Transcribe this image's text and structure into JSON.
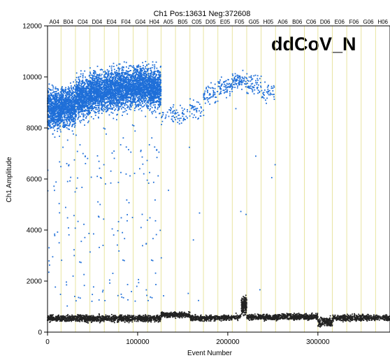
{
  "chart_data": {
    "type": "scatter",
    "title": "Ch1 Pos:13631 Neg:372608",
    "overlay_label": "ddCoV_N",
    "xlabel": "Event Number",
    "ylabel": "Ch1 Amplitude",
    "xlim": [
      0,
      380000
    ],
    "ylim": [
      0,
      12000
    ],
    "x_ticks": [
      0,
      100000,
      200000,
      300000
    ],
    "x_tick_labels": [
      "0",
      "100000",
      "200000",
      "300000"
    ],
    "y_ticks": [
      0,
      2000,
      4000,
      6000,
      8000,
      10000,
      12000
    ],
    "y_tick_labels": [
      "0",
      "2000",
      "4000",
      "6000",
      "8000",
      "10000",
      "12000"
    ],
    "well_labels": [
      "A04",
      "B04",
      "C04",
      "D04",
      "E04",
      "F04",
      "G04",
      "H04",
      "A05",
      "B05",
      "C05",
      "D05",
      "E05",
      "F05",
      "G05",
      "H05",
      "A06",
      "B06",
      "C06",
      "D06",
      "E06",
      "F06",
      "G06",
      "H06"
    ],
    "well_boundaries": [
      0,
      15000,
      31000,
      47000,
      63000,
      79000,
      95000,
      111000,
      126000,
      142000,
      158000,
      173000,
      189000,
      205000,
      221000,
      237000,
      253000,
      269000,
      285000,
      300000,
      316000,
      332000,
      348000,
      364000,
      380000
    ],
    "grid": true,
    "colors": {
      "positive": "#1f6fd8",
      "negative": "#222222",
      "well_divider": "#e8e4a0",
      "frame": "#000000"
    },
    "series": [
      {
        "name": "Positive",
        "color": "#1f6fd8",
        "clusters": [
          {
            "x_start": 0,
            "x_end": 15000,
            "y_mean": 8750,
            "y_spread": 650,
            "n": 700
          },
          {
            "x_start": 15000,
            "x_end": 31000,
            "y_mean": 8850,
            "y_spread": 650,
            "n": 700
          },
          {
            "x_start": 31000,
            "x_end": 47000,
            "y_mean": 9200,
            "y_spread": 650,
            "n": 700
          },
          {
            "x_start": 47000,
            "x_end": 63000,
            "y_mean": 9400,
            "y_spread": 650,
            "n": 700
          },
          {
            "x_start": 63000,
            "x_end": 79000,
            "y_mean": 9500,
            "y_spread": 650,
            "n": 700
          },
          {
            "x_start": 79000,
            "x_end": 95000,
            "y_mean": 9550,
            "y_spread": 650,
            "n": 700
          },
          {
            "x_start": 95000,
            "x_end": 111000,
            "y_mean": 9650,
            "y_spread": 650,
            "n": 700
          },
          {
            "x_start": 111000,
            "x_end": 126000,
            "y_mean": 9550,
            "y_spread": 650,
            "n": 700
          },
          {
            "x_start": 126000,
            "x_end": 142000,
            "y_mean": 8500,
            "y_spread": 300,
            "n": 40
          },
          {
            "x_start": 142000,
            "x_end": 158000,
            "y_mean": 8500,
            "y_spread": 300,
            "n": 35
          },
          {
            "x_start": 158000,
            "x_end": 173000,
            "y_mean": 8700,
            "y_spread": 300,
            "n": 40
          },
          {
            "x_start": 173000,
            "x_end": 189000,
            "y_mean": 9300,
            "y_spread": 300,
            "n": 60
          },
          {
            "x_start": 189000,
            "x_end": 205000,
            "y_mean": 9650,
            "y_spread": 300,
            "n": 70
          },
          {
            "x_start": 205000,
            "x_end": 221000,
            "y_mean": 9850,
            "y_spread": 300,
            "n": 80
          },
          {
            "x_start": 221000,
            "x_end": 237000,
            "y_mean": 9700,
            "y_spread": 350,
            "n": 60
          },
          {
            "x_start": 237000,
            "x_end": 253000,
            "y_mean": 9400,
            "y_spread": 350,
            "n": 40
          }
        ]
      },
      {
        "name": "Negative",
        "color": "#222222",
        "clusters": [
          {
            "x_start": 0,
            "x_end": 126000,
            "y_mean": 540,
            "y_spread": 110,
            "n": 1200
          },
          {
            "x_start": 126000,
            "x_end": 158000,
            "y_mean": 680,
            "y_spread": 90,
            "n": 300
          },
          {
            "x_start": 158000,
            "x_end": 205000,
            "y_mean": 550,
            "y_spread": 90,
            "n": 400
          },
          {
            "x_start": 205000,
            "x_end": 215000,
            "y_mean": 600,
            "y_spread": 90,
            "n": 60
          },
          {
            "x_start": 215000,
            "x_end": 221000,
            "y_mean": 1050,
            "y_spread": 300,
            "n": 180
          },
          {
            "x_start": 221000,
            "x_end": 253000,
            "y_mean": 590,
            "y_spread": 90,
            "n": 300
          },
          {
            "x_start": 253000,
            "x_end": 300000,
            "y_mean": 600,
            "y_spread": 100,
            "n": 450
          },
          {
            "x_start": 300000,
            "x_end": 316000,
            "y_mean": 400,
            "y_spread": 150,
            "n": 180
          },
          {
            "x_start": 316000,
            "x_end": 380000,
            "y_mean": 560,
            "y_spread": 100,
            "n": 500
          }
        ]
      }
    ]
  }
}
